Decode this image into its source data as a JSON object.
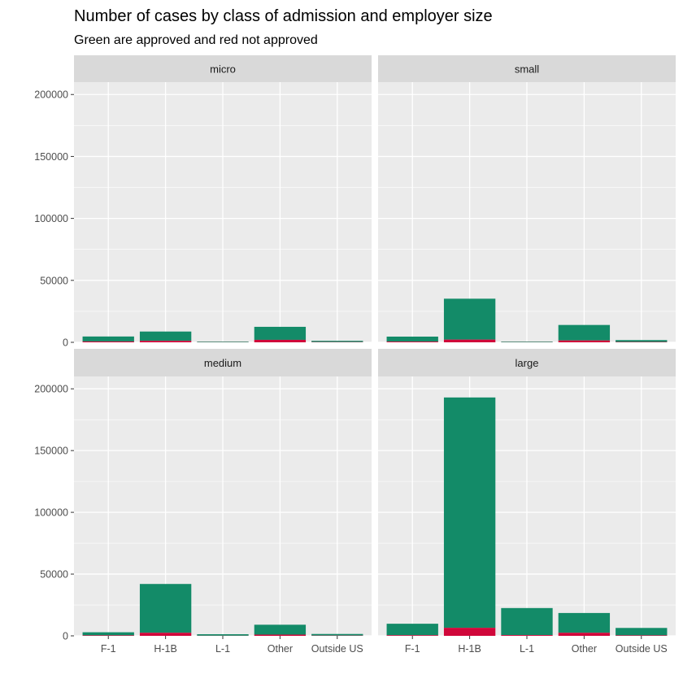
{
  "chart_data": {
    "type": "bar",
    "stacked": true,
    "title": "Number of cases by class of admission and employer size",
    "subtitle": "Green are approved and red not approved",
    "categories": [
      "F-1",
      "H-1B",
      "L-1",
      "Other",
      "Outside US"
    ],
    "ylim": [
      0,
      210000
    ],
    "yticks": [
      0,
      50000,
      100000,
      150000,
      200000
    ],
    "ytick_labels": [
      "0",
      "50000",
      "100000",
      "150000",
      "200000"
    ],
    "grid": true,
    "colors": {
      "approved": "#138B68",
      "not_approved": "#D0073A",
      "panel_bg": "#EBEBEB",
      "strip_bg": "#D9D9D9"
    },
    "facets": [
      {
        "label": "micro",
        "approved": [
          4000,
          7500,
          500,
          10500,
          1000
        ],
        "not_approved": [
          700,
          1200,
          100,
          2000,
          200
        ]
      },
      {
        "label": "small",
        "approved": [
          4000,
          33000,
          500,
          12500,
          1500
        ],
        "not_approved": [
          600,
          2200,
          100,
          1500,
          300
        ]
      },
      {
        "label": "medium",
        "approved": [
          2500,
          39500,
          1200,
          8000,
          1300
        ],
        "not_approved": [
          400,
          2500,
          100,
          1000,
          200
        ]
      },
      {
        "label": "large",
        "approved": [
          9300,
          186500,
          21900,
          16000,
          6000
        ],
        "not_approved": [
          500,
          6500,
          600,
          2500,
          400
        ]
      }
    ]
  }
}
